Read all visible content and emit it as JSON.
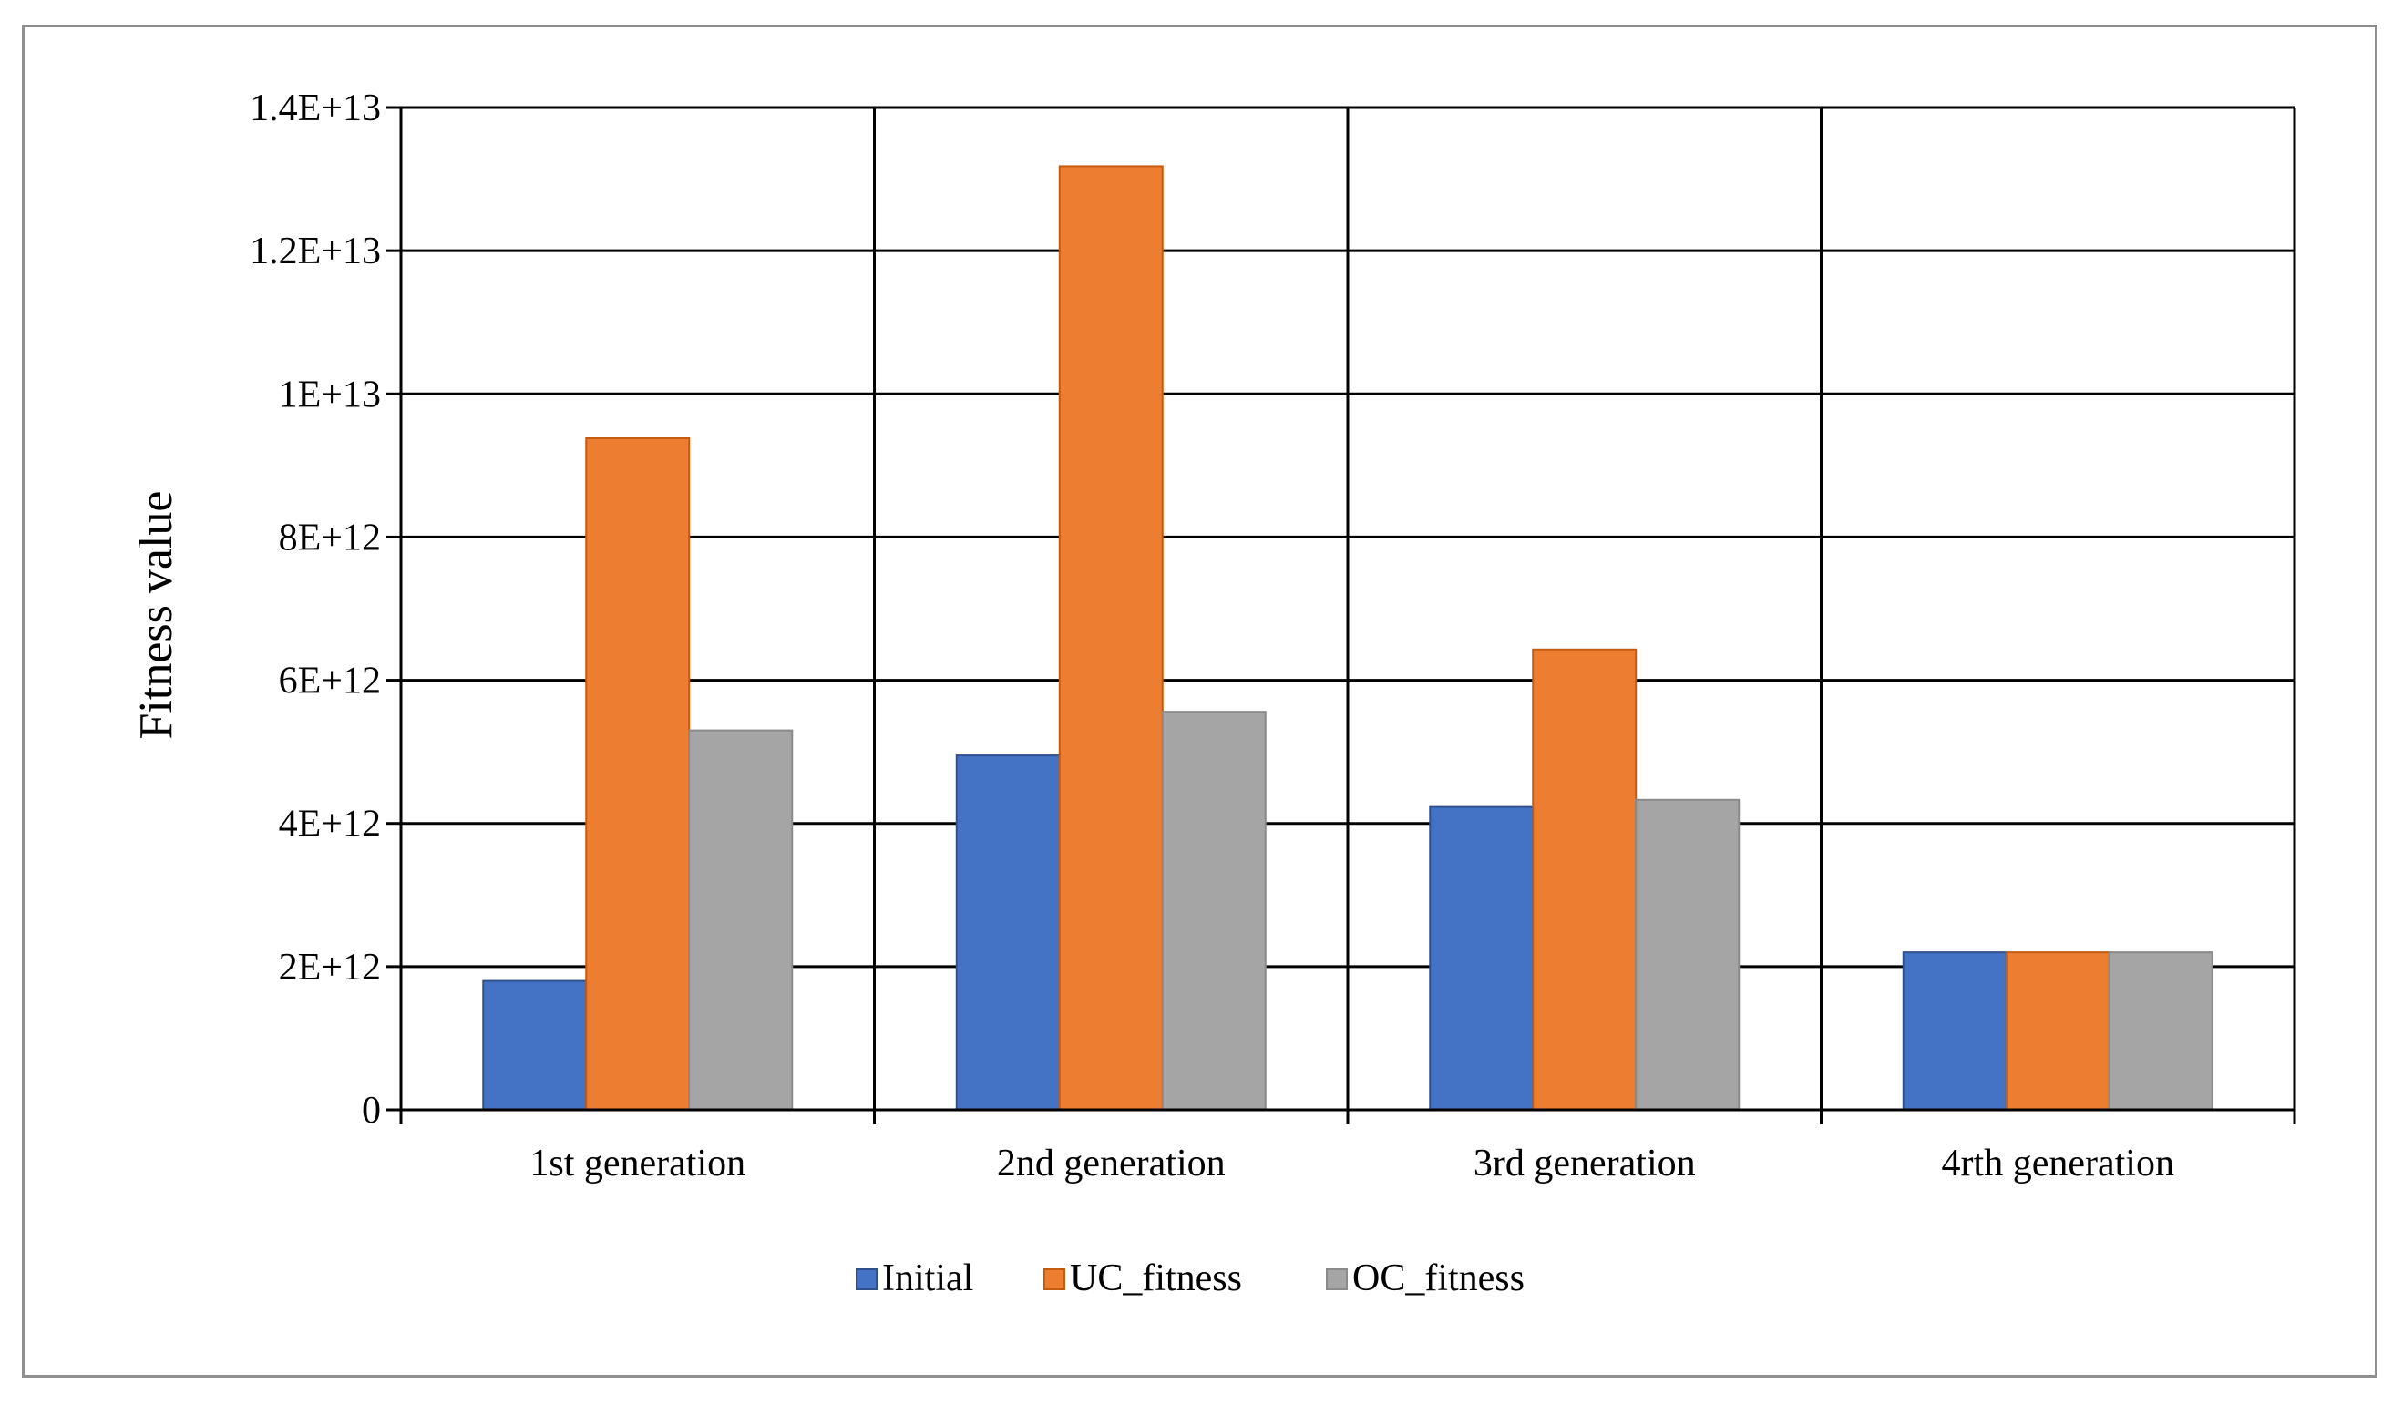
{
  "chart_data": {
    "type": "bar",
    "title": "",
    "xlabel": "",
    "ylabel": "Fitness value",
    "ylim": [
      0,
      14000000000000
    ],
    "yticks": [
      {
        "value": 0,
        "label": "0"
      },
      {
        "value": 2000000000000,
        "label": "2E+12"
      },
      {
        "value": 4000000000000,
        "label": "4E+12"
      },
      {
        "value": 6000000000000,
        "label": "6E+12"
      },
      {
        "value": 8000000000000,
        "label": "8E+12"
      },
      {
        "value": 10000000000000,
        "label": "1E+13"
      },
      {
        "value": 12000000000000,
        "label": "1.2E+13"
      },
      {
        "value": 14000000000000,
        "label": "1.4E+13"
      }
    ],
    "grid": true,
    "legend_position": "bottom",
    "categories": [
      "1st generation",
      "2nd generation",
      "3rd generation",
      "4rth generation"
    ],
    "series": [
      {
        "name": "Initial",
        "color": "#4472c4",
        "edge": "#2f528f",
        "values": [
          1800000000000,
          4950000000000,
          4230000000000,
          2200000000000
        ]
      },
      {
        "name": "UC_fitness",
        "color": "#ed7d31",
        "edge": "#c55a11",
        "values": [
          9380000000000,
          13180000000000,
          6430000000000,
          2200000000000
        ]
      },
      {
        "name": "OC_fitness",
        "color": "#a5a5a5",
        "edge": "#8a8a8a",
        "values": [
          5300000000000,
          5560000000000,
          4330000000000,
          2200000000000
        ]
      }
    ]
  }
}
